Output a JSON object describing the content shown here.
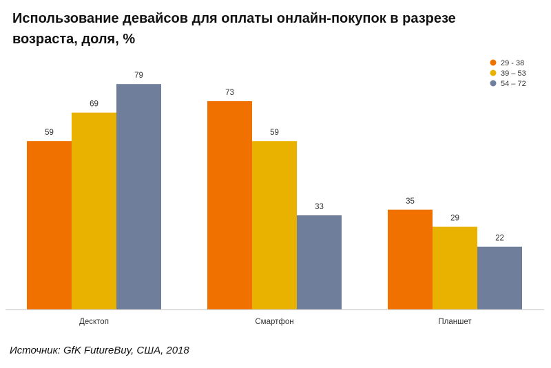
{
  "chart_data": {
    "type": "bar",
    "title": "Использование девайсов для оплаты онлайн-покупок в разрезе возраста, доля, %",
    "categories": [
      "Десктоп",
      "Смартфон",
      "Планшет"
    ],
    "series": [
      {
        "name": "29 - 38",
        "values": [
          59,
          73,
          35
        ],
        "color": "#F07000"
      },
      {
        "name": "39 – 53",
        "values": [
          69,
          59,
          29
        ],
        "color": "#EAB200"
      },
      {
        "name": "54 – 72",
        "values": [
          79,
          33,
          22
        ],
        "color": "#6F7F9B"
      }
    ],
    "ylim": [
      0,
      100
    ],
    "grid": false,
    "legend_position": "top-right",
    "data_labels": true,
    "source": "Источник: GfK FutureBuy, США, 2018"
  }
}
